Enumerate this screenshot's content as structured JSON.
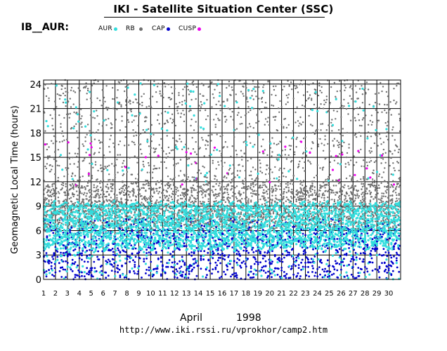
{
  "header": {
    "title": "IKI - Satellite Situation Center (SSC)",
    "ib_label": "IB__AUR:"
  },
  "legend": [
    {
      "label": "AUR",
      "color": "#33dddd"
    },
    {
      "label": "RB",
      "color": "#707070"
    },
    {
      "label": "CAP",
      "color": "#0000cc"
    },
    {
      "label": "CUSP",
      "color": "#ee00ee"
    }
  ],
  "footer": {
    "month": "April",
    "year": "1998",
    "url": "http://www.iki.rssi.ru/vprokhor/camp2.htm"
  },
  "chart_data": {
    "type": "scatter",
    "title": "",
    "xlabel": "",
    "ylabel": "Geomagnetic Local Time (hours)",
    "x_ticks": [
      1,
      2,
      3,
      4,
      5,
      6,
      7,
      8,
      9,
      10,
      11,
      12,
      13,
      14,
      15,
      16,
      17,
      18,
      19,
      20,
      21,
      22,
      23,
      24,
      25,
      26,
      27,
      28,
      29,
      30
    ],
    "y_ticks": [
      0,
      3,
      6,
      9,
      12,
      15,
      18,
      21,
      24
    ],
    "xlim": [
      1,
      31
    ],
    "ylim": [
      0,
      24.5
    ],
    "grid": true,
    "region_classes": [
      {
        "name": "AUR",
        "typical_mlt_range": [
          4,
          9.5
        ]
      },
      {
        "name": "RB",
        "typical_mlt_range": [
          6,
          12
        ]
      },
      {
        "name": "CAP",
        "typical_mlt_range": [
          0,
          8
        ]
      },
      {
        "name": "CUSP",
        "typical_mlt_range": [
          11,
          17
        ]
      }
    ]
  }
}
